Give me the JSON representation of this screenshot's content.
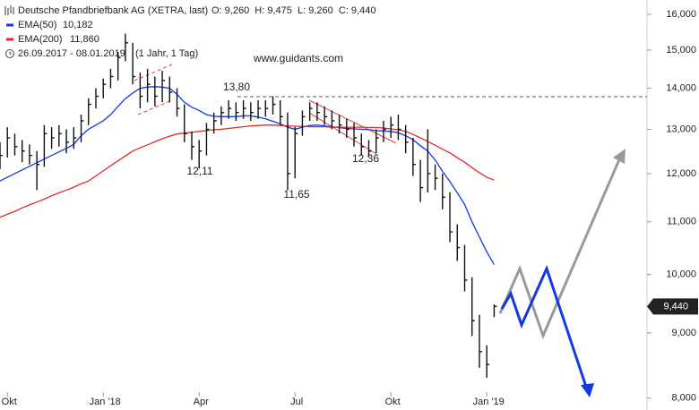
{
  "chart_data": {
    "type": "hlc",
    "title": "Deutsche Pfandbriefbank AG (XETRA, last)",
    "quote": "O: 9,260  H: 9,475  L: 9,260  C: 9,440",
    "date_range": "26.09.2017 - 08.01.2019",
    "period": "(1 Jahr, 1 Tag)",
    "watermark": "www.guidants.com",
    "annotations": [
      "13,80",
      "12,11",
      "11,65",
      "12,36"
    ],
    "bar_color": "#111111",
    "log": true,
    "categories": [
      null,
      "Okt",
      null,
      null,
      null,
      null,
      null,
      null,
      null,
      null,
      null,
      null,
      null,
      null,
      "Jan '18",
      null,
      null,
      null,
      null,
      null,
      null,
      null,
      null,
      null,
      null,
      null,
      null,
      "Apr",
      null,
      null,
      null,
      null,
      null,
      null,
      null,
      null,
      null,
      null,
      null,
      null,
      "Jul",
      null,
      null,
      null,
      null,
      null,
      null,
      null,
      null,
      null,
      null,
      null,
      null,
      "Okt",
      null,
      null,
      null,
      null,
      null,
      null,
      null,
      null,
      null,
      null,
      null,
      null,
      "Jan '19",
      null
    ],
    "high": [
      12700,
      13050,
      12900,
      12750,
      12650,
      12500,
      13100,
      13050,
      13100,
      13000,
      13050,
      13350,
      13750,
      14000,
      14250,
      14500,
      14950,
      15450,
      15200,
      14400,
      14500,
      14300,
      14450,
      14300,
      14000,
      13600,
      12950,
      12750,
      13150,
      13400,
      13550,
      13700,
      13650,
      13700,
      13650,
      13700,
      13700,
      13800,
      13700,
      13400,
      13050,
      13450,
      13650,
      13650,
      13550,
      13450,
      13350,
      13250,
      13150,
      12900,
      12750,
      13000,
      13200,
      13300,
      13350,
      13100,
      12800,
      12300,
      13000,
      12200,
      12000,
      11600,
      10950,
      10550,
      9950,
      9300,
      8800,
      9475
    ],
    "low": [
      12100,
      12350,
      12400,
      12250,
      12200,
      11650,
      12150,
      12550,
      12600,
      12450,
      12550,
      12700,
      13100,
      13500,
      13750,
      14000,
      14200,
      14700,
      14100,
      13500,
      13650,
      13550,
      13650,
      13650,
      13300,
      12700,
      12300,
      12110,
      12400,
      12900,
      13100,
      13250,
      13200,
      13250,
      13200,
      13250,
      13300,
      13350,
      13100,
      11650,
      11900,
      12850,
      13200,
      13200,
      13100,
      13000,
      12900,
      12800,
      12600,
      12400,
      12360,
      12450,
      12700,
      12800,
      12750,
      12450,
      11950,
      11400,
      11600,
      11650,
      11250,
      10600,
      10250,
      9700,
      8950,
      8450,
      8300,
      9260
    ],
    "close": [
      12400,
      12800,
      12600,
      12500,
      12400,
      12200,
      12900,
      12800,
      12900,
      12700,
      12800,
      13200,
      13600,
      13800,
      14100,
      14300,
      14800,
      15200,
      14300,
      13800,
      14100,
      13800,
      14200,
      13900,
      13500,
      12900,
      12600,
      12500,
      13000,
      13200,
      13400,
      13500,
      13400,
      13500,
      13400,
      13500,
      13500,
      13600,
      13300,
      12000,
      12900,
      13300,
      13500,
      13400,
      13300,
      13200,
      13100,
      13000,
      12800,
      12600,
      12500,
      12800,
      13000,
      13100,
      13000,
      12700,
      12200,
      11700,
      12000,
      11900,
      11500,
      10800,
      10500,
      9900,
      9200,
      8700,
      8500,
      9440
    ],
    "series": [
      {
        "name": "EMA(50)",
        "value_label": "10,182",
        "color": "#1238e0",
        "values": [
          11840,
          11920,
          12000,
          12080,
          12160,
          12240,
          12320,
          12400,
          12480,
          12560,
          12650,
          12850,
          13000,
          13100,
          13200,
          13350,
          13550,
          13740,
          13880,
          14000,
          14030,
          14040,
          14030,
          14000,
          13850,
          13650,
          13530,
          13450,
          13350,
          13310,
          13300,
          13300,
          13300,
          13320,
          13320,
          13290,
          13250,
          13190,
          13130,
          13050,
          13000,
          13050,
          13090,
          13100,
          13080,
          13060,
          13040,
          13020,
          13010,
          13000,
          12990,
          12970,
          12960,
          12950,
          12920,
          12850,
          12760,
          12620,
          12500,
          12300,
          12050,
          11830,
          11590,
          11350,
          11000,
          10700,
          10420,
          10182
        ]
      },
      {
        "name": "EMA(200)",
        "value_label": "11,860",
        "color": "#e02a2a",
        "values": [
          11090,
          11150,
          11210,
          11280,
          11340,
          11400,
          11460,
          11530,
          11590,
          11650,
          11710,
          11780,
          11840,
          11950,
          12060,
          12170,
          12280,
          12390,
          12500,
          12570,
          12640,
          12710,
          12780,
          12840,
          12890,
          12910,
          12930,
          12950,
          12970,
          12990,
          13000,
          13020,
          13040,
          13060,
          13080,
          13090,
          13100,
          13100,
          13090,
          13080,
          13070,
          13070,
          13060,
          13060,
          13060,
          13050,
          13050,
          13050,
          13050,
          13050,
          13040,
          13040,
          13030,
          13010,
          12990,
          12950,
          12880,
          12800,
          12720,
          12630,
          12540,
          12460,
          12350,
          12250,
          12130,
          12020,
          11920,
          11860
        ]
      }
    ],
    "last_price": {
      "value": 9440,
      "label": "9,440"
    },
    "ylim": [
      7830,
      16420
    ],
    "yticks": [
      {
        "value": 8000,
        "label": "8,000"
      },
      {
        "value": 9000,
        "label": "9,000"
      },
      {
        "value": 10000,
        "label": "10,000"
      },
      {
        "value": 11000,
        "label": "11,000"
      },
      {
        "value": 12000,
        "label": "12,000"
      },
      {
        "value": 13000,
        "label": "13,000"
      },
      {
        "value": 14000,
        "label": "14,000"
      },
      {
        "value": 15000,
        "label": "15,000"
      },
      {
        "value": 16000,
        "label": "16,000"
      }
    ]
  }
}
